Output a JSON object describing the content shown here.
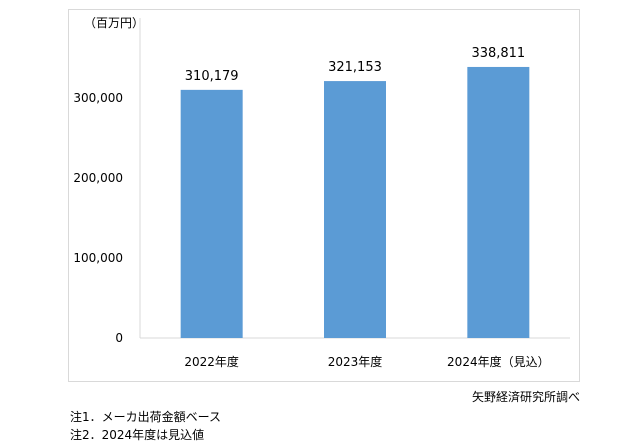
{
  "chart_data": {
    "type": "bar",
    "unit_label": "（百万円）",
    "categories": [
      "2022年度",
      "2023年度",
      "2024年度（見込）"
    ],
    "values": [
      310179,
      321153,
      338811
    ],
    "value_labels": [
      "310,179",
      "321,153",
      "338,811"
    ],
    "ylim": [
      0,
      400000
    ],
    "yticks": [
      0,
      100000,
      200000,
      300000
    ],
    "ytick_labels": [
      "0",
      "100,000",
      "200,000",
      "300,000"
    ],
    "bar_color": "#5b9bd5",
    "grid": false
  },
  "source": "矢野経済研究所調べ",
  "notes": [
    "注1．メーカ出荷金額ベース",
    "注2．2024年度は見込値"
  ]
}
